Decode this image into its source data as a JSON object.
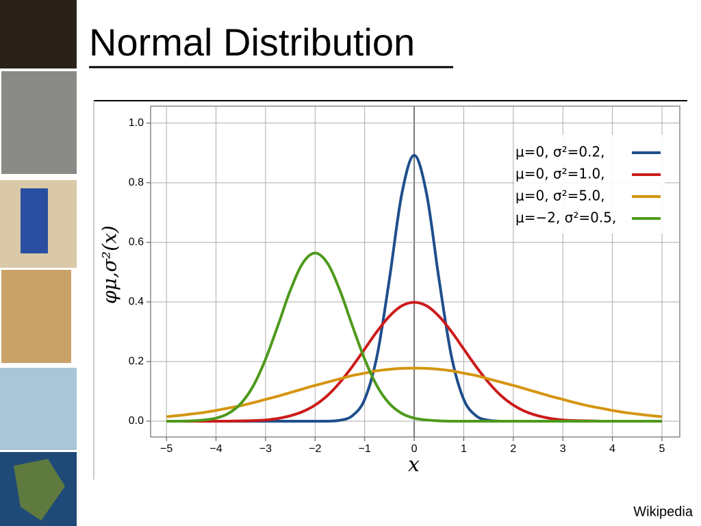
{
  "slide": {
    "title": "Normal Distribution",
    "credit": "Wikipedia"
  },
  "chart_data": {
    "type": "line",
    "x_label": "x",
    "y_label": "φμ,σ²(x)",
    "x": [
      -5,
      -4.75,
      -4.5,
      -4.25,
      -4,
      -3.75,
      -3.5,
      -3.25,
      -3,
      -2.75,
      -2.5,
      -2.25,
      -2,
      -1.75,
      -1.5,
      -1.25,
      -1,
      -0.75,
      -0.5,
      -0.25,
      0,
      0.25,
      0.5,
      0.75,
      1,
      1.25,
      1.5,
      1.75,
      2,
      2.25,
      2.5,
      2.75,
      3,
      3.25,
      3.5,
      3.75,
      4,
      4.25,
      4.5,
      4.75,
      5
    ],
    "series": [
      {
        "name": "μ=0,   σ²=0.2,",
        "color": "#1f4e8c",
        "values": [
          0,
          0,
          0,
          0,
          0,
          0,
          0,
          0,
          0,
          0,
          0,
          0,
          0,
          0,
          0.003,
          0.018,
          0.073,
          0.219,
          0.477,
          0.763,
          0.892,
          0.763,
          0.477,
          0.219,
          0.073,
          0.018,
          0.003,
          0,
          0,
          0,
          0,
          0,
          0,
          0,
          0,
          0,
          0,
          0,
          0,
          0,
          0
        ]
      },
      {
        "name": "μ=0,   σ²=1.0,",
        "color": "#cc1a1a",
        "values": [
          0,
          0,
          0,
          0,
          0,
          0,
          0.001,
          0.002,
          0.004,
          0.009,
          0.018,
          0.032,
          0.054,
          0.086,
          0.13,
          0.183,
          0.242,
          0.301,
          0.352,
          0.387,
          0.399,
          0.387,
          0.352,
          0.301,
          0.242,
          0.183,
          0.13,
          0.086,
          0.054,
          0.032,
          0.018,
          0.009,
          0.004,
          0.002,
          0.001,
          0,
          0,
          0,
          0,
          0,
          0
        ]
      },
      {
        "name": "μ=0,   σ²=5.0,",
        "color": "#d4950f",
        "values": [
          0.015,
          0.019,
          0.024,
          0.029,
          0.036,
          0.044,
          0.052,
          0.062,
          0.073,
          0.084,
          0.096,
          0.108,
          0.12,
          0.131,
          0.142,
          0.153,
          0.161,
          0.169,
          0.174,
          0.177,
          0.178,
          0.177,
          0.174,
          0.169,
          0.161,
          0.153,
          0.142,
          0.131,
          0.12,
          0.108,
          0.096,
          0.084,
          0.073,
          0.062,
          0.052,
          0.044,
          0.036,
          0.029,
          0.024,
          0.019,
          0.015
        ]
      },
      {
        "name": "μ=−2, σ²=0.5,",
        "color": "#4e9a1c",
        "values": [
          0,
          0,
          0.001,
          0.004,
          0.01,
          0.026,
          0.059,
          0.118,
          0.208,
          0.321,
          0.439,
          0.53,
          0.564,
          0.53,
          0.439,
          0.321,
          0.208,
          0.118,
          0.059,
          0.026,
          0.01,
          0.004,
          0.001,
          0,
          0,
          0,
          0,
          0,
          0,
          0,
          0,
          0,
          0,
          0,
          0,
          0,
          0,
          0,
          0,
          0,
          0
        ]
      }
    ],
    "xlim": [
      -5.32,
      5.36
    ],
    "ylim": [
      -0.053,
      1.057
    ],
    "xticks": [
      {
        "value": -5,
        "label": "−5"
      },
      {
        "value": -4,
        "label": "−4"
      },
      {
        "value": -3,
        "label": "−3"
      },
      {
        "value": -2,
        "label": "−2"
      },
      {
        "value": -1,
        "label": "−1"
      },
      0,
      1,
      2,
      3,
      4,
      5
    ],
    "yticks": [
      {
        "value": 0,
        "label": "0.0"
      },
      {
        "value": 0.2,
        "label": "0.2"
      },
      {
        "value": 0.4,
        "label": "0.4"
      },
      {
        "value": 0.6,
        "label": "0.6"
      },
      {
        "value": 0.8,
        "label": "0.8"
      },
      {
        "value": 1,
        "label": "1.0"
      }
    ],
    "grid": true,
    "legend": "upper right"
  }
}
